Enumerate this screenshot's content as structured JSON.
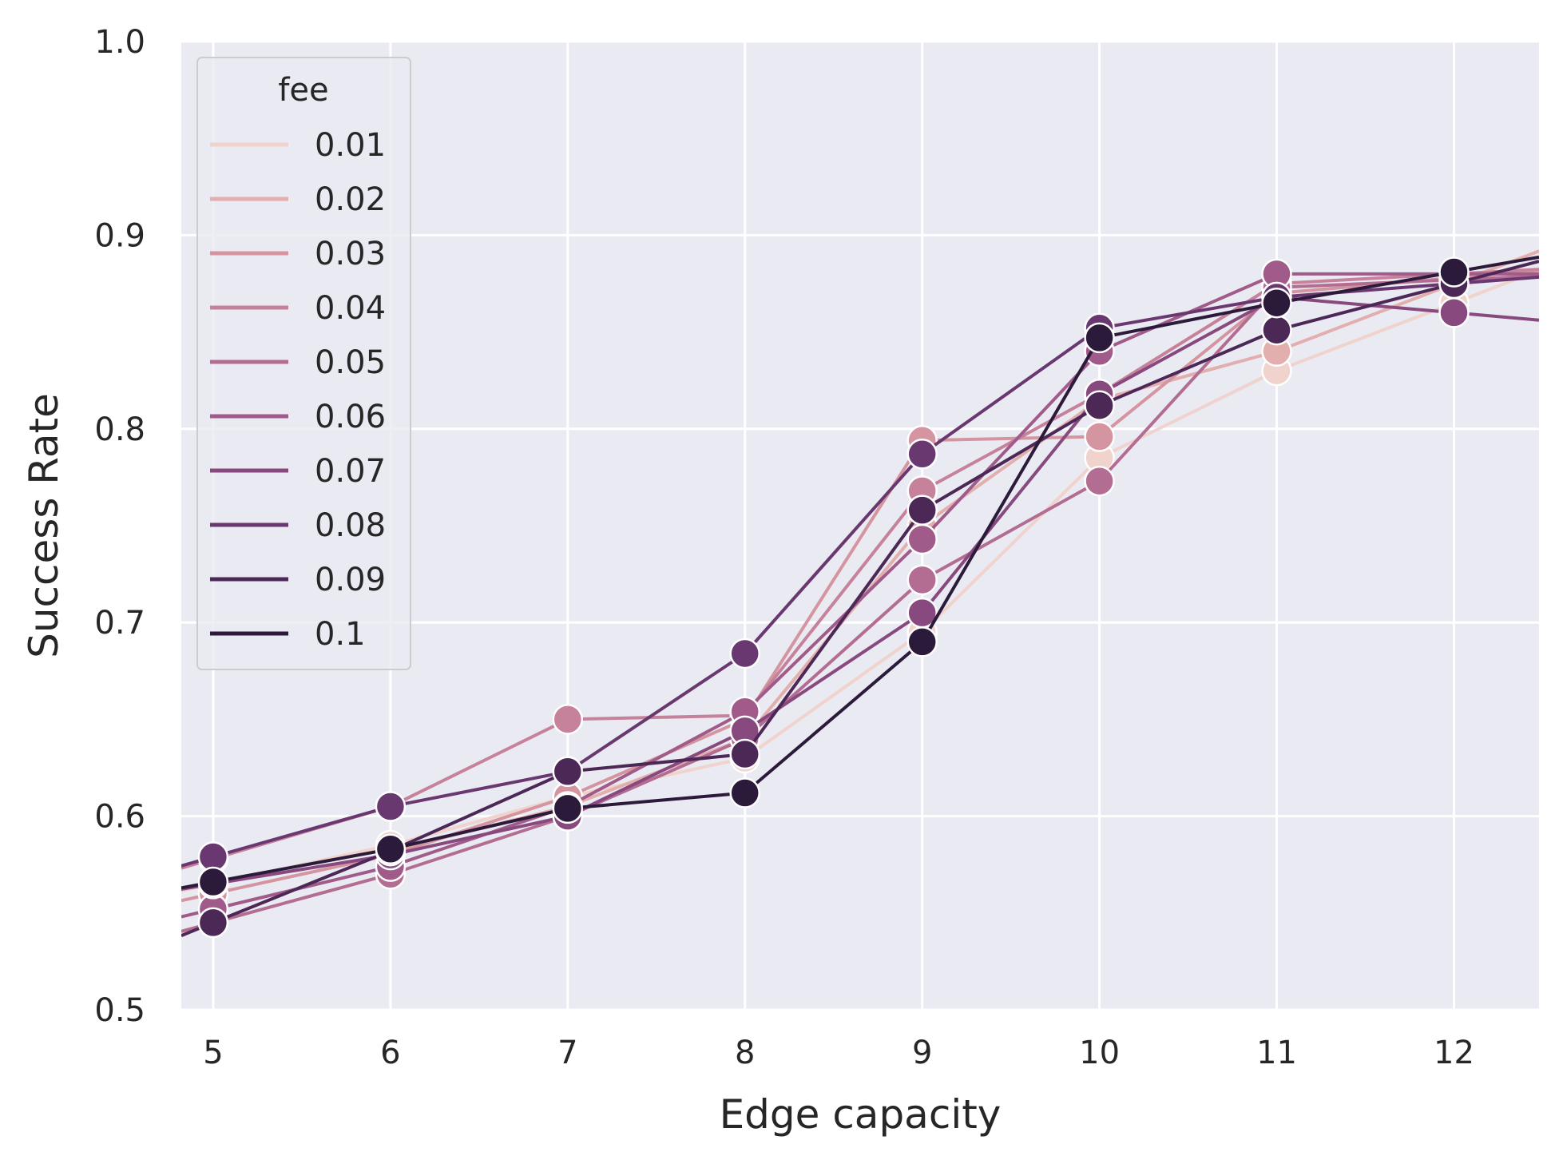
{
  "chart_data": {
    "type": "line",
    "xlabel": "Edge capacity",
    "ylabel": "Success Rate",
    "x": [
      5,
      6,
      7,
      8,
      9,
      10,
      11,
      12
    ],
    "xlim": [
      4.82,
      12.48
    ],
    "ylim": [
      0.5,
      1.0
    ],
    "x_ticks": [
      "5",
      "6",
      "7",
      "8",
      "9",
      "10",
      "11",
      "12"
    ],
    "y_ticks": [
      "0.5",
      "0.6",
      "0.7",
      "0.8",
      "0.9",
      "1.0"
    ],
    "grid": true,
    "legend": {
      "title": "fee",
      "placement": "top-left"
    },
    "series": [
      {
        "name": "0.01",
        "color": "#efd3cc",
        "values": [
          0.565,
          0.585,
          0.61,
          0.63,
          0.695,
          0.785,
          0.83,
          0.865
        ]
      },
      {
        "name": "0.02",
        "color": "#e2aeae",
        "values": [
          0.545,
          0.582,
          0.605,
          0.64,
          0.75,
          0.815,
          0.84,
          0.875
        ]
      },
      {
        "name": "0.03",
        "color": "#d595a0",
        "values": [
          0.56,
          0.58,
          0.61,
          0.65,
          0.794,
          0.796,
          0.87,
          0.878
        ]
      },
      {
        "name": "0.04",
        "color": "#c6819b",
        "values": [
          0.578,
          0.605,
          0.65,
          0.652,
          0.768,
          0.818,
          0.875,
          0.88
        ]
      },
      {
        "name": "0.05",
        "color": "#b46d92",
        "values": [
          0.545,
          0.57,
          0.6,
          0.64,
          0.722,
          0.773,
          0.873,
          0.877
        ]
      },
      {
        "name": "0.06",
        "color": "#a05b8a",
        "values": [
          0.552,
          0.574,
          0.605,
          0.654,
          0.743,
          0.84,
          0.88,
          0.88
        ]
      },
      {
        "name": "0.07",
        "color": "#87497e",
        "values": [
          0.565,
          0.58,
          0.6,
          0.644,
          0.705,
          0.818,
          0.868,
          0.86
        ]
      },
      {
        "name": "0.08",
        "color": "#6a3870",
        "values": [
          0.579,
          0.605,
          0.623,
          0.684,
          0.787,
          0.852,
          0.868,
          0.875
        ]
      },
      {
        "name": "0.09",
        "color": "#4c2857",
        "values": [
          0.545,
          0.582,
          0.623,
          0.632,
          0.758,
          0.812,
          0.851,
          0.875
        ]
      },
      {
        "name": "0.1",
        "color": "#2c1a3b",
        "values": [
          0.566,
          0.583,
          0.604,
          0.612,
          0.69,
          0.847,
          0.865,
          0.881
        ]
      }
    ]
  }
}
